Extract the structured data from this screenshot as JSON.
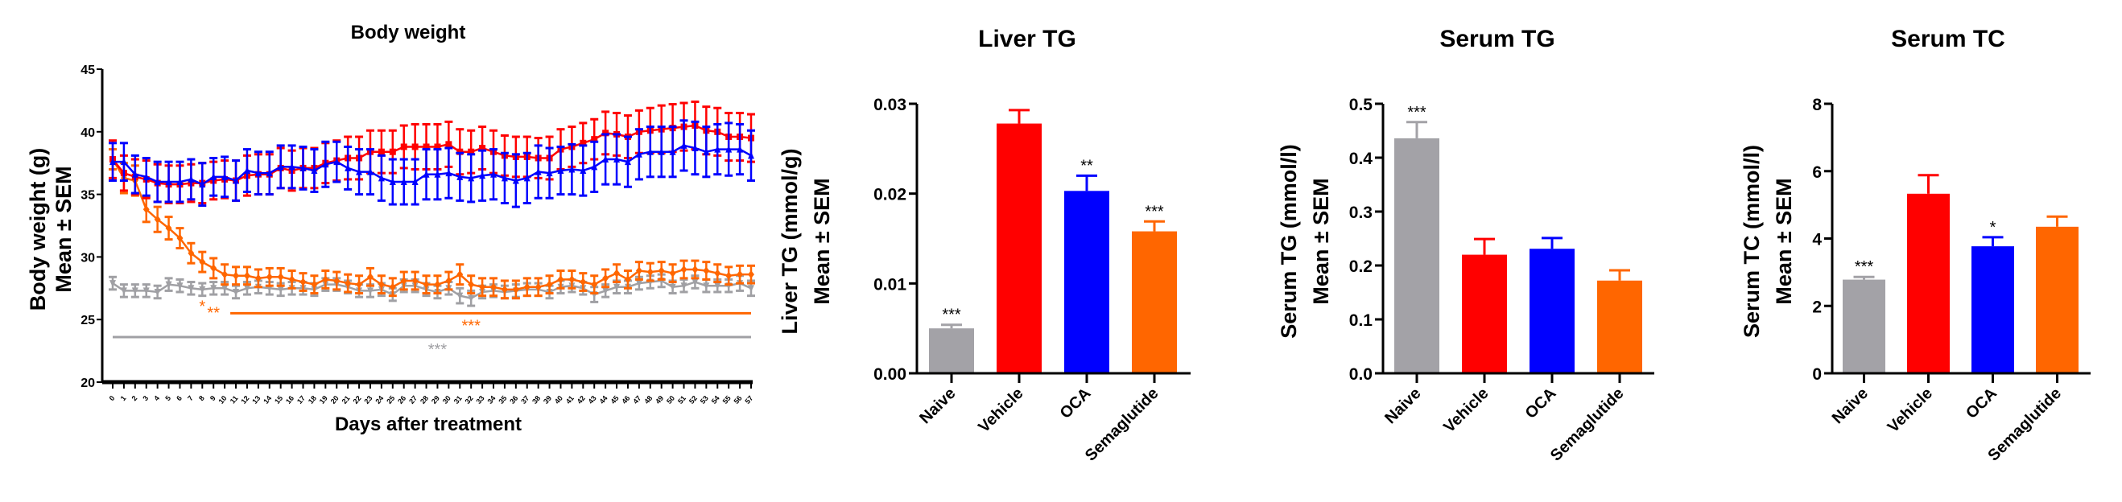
{
  "chart_data": [
    {
      "type": "line",
      "title": "Body weight",
      "xlabel": "Days after treatment",
      "ylabel": [
        "Body weight (g)",
        "Mean ± SEM"
      ],
      "ylim": [
        20,
        45
      ],
      "yticks": [
        20,
        25,
        30,
        35,
        40,
        45
      ],
      "x": [
        0,
        1,
        2,
        3,
        4,
        5,
        6,
        7,
        8,
        9,
        10,
        11,
        12,
        13,
        14,
        15,
        16,
        17,
        18,
        19,
        20,
        21,
        22,
        23,
        24,
        25,
        26,
        27,
        28,
        29,
        30,
        31,
        32,
        33,
        34,
        35,
        36,
        37,
        38,
        39,
        40,
        41,
        42,
        43,
        44,
        45,
        46,
        47,
        48,
        49,
        50,
        51,
        52,
        53,
        54,
        55,
        56,
        57
      ],
      "series": [
        {
          "name": "Naive",
          "color": "#a0a0a4",
          "marker": "triangle-down",
          "values": [
            27.9,
            27.3,
            27.3,
            27.3,
            27.2,
            27.8,
            27.7,
            27.5,
            27.4,
            27.5,
            27.5,
            27.2,
            27.5,
            27.6,
            27.5,
            27.4,
            27.5,
            27.5,
            27.4,
            27.8,
            27.8,
            27.6,
            27.3,
            27.3,
            27.4,
            27.0,
            27.7,
            27.7,
            27.4,
            27.2,
            27.5,
            26.9,
            26.7,
            27.2,
            27.3,
            27.2,
            27.3,
            27.4,
            27.4,
            27.2,
            27.6,
            27.7,
            27.5,
            27.0,
            27.3,
            27.6,
            27.6,
            27.9,
            28.0,
            28.1,
            27.6,
            27.7,
            28.0,
            27.7,
            27.7,
            27.7,
            27.9,
            27.5
          ],
          "sem": [
            0.5,
            0.5,
            0.5,
            0.5,
            0.5,
            0.5,
            0.5,
            0.5,
            0.5,
            0.5,
            0.5,
            0.5,
            0.5,
            0.5,
            0.5,
            0.5,
            0.5,
            0.5,
            0.5,
            0.5,
            0.5,
            0.5,
            0.5,
            0.5,
            0.5,
            0.5,
            0.5,
            0.5,
            0.5,
            0.5,
            0.5,
            0.6,
            0.6,
            0.5,
            0.5,
            0.5,
            0.5,
            0.5,
            0.5,
            0.5,
            0.5,
            0.5,
            0.5,
            0.6,
            0.5,
            0.5,
            0.5,
            0.5,
            0.5,
            0.5,
            0.5,
            0.5,
            0.5,
            0.5,
            0.5,
            0.5,
            0.6,
            0.6
          ]
        },
        {
          "name": "Vehicle",
          "color": "#ff0000",
          "marker": "square",
          "values": [
            37.8,
            36.7,
            36.4,
            36.2,
            35.9,
            35.8,
            35.8,
            35.9,
            35.9,
            36.1,
            36.2,
            36.1,
            36.5,
            36.6,
            36.6,
            37.1,
            36.9,
            37.1,
            37.1,
            37.5,
            37.7,
            37.9,
            37.9,
            38.4,
            38.4,
            38.4,
            38.8,
            38.8,
            38.8,
            38.8,
            39.0,
            38.4,
            38.4,
            38.7,
            38.4,
            38.1,
            38.0,
            38.0,
            37.9,
            37.9,
            38.6,
            38.8,
            39.1,
            39.4,
            39.9,
            39.8,
            39.6,
            40.0,
            40.1,
            40.2,
            40.3,
            40.4,
            40.5,
            40.1,
            40.0,
            39.6,
            39.6,
            39.5
          ],
          "sem": [
            1.5,
            1.4,
            1.4,
            1.5,
            1.5,
            1.5,
            1.5,
            1.5,
            1.6,
            1.5,
            1.5,
            1.6,
            1.6,
            1.6,
            1.6,
            1.6,
            1.6,
            1.6,
            1.6,
            1.6,
            1.6,
            1.7,
            1.7,
            1.7,
            1.7,
            1.7,
            1.7,
            1.8,
            1.8,
            1.8,
            1.8,
            1.8,
            1.7,
            1.7,
            1.7,
            1.6,
            1.6,
            1.6,
            1.6,
            1.7,
            1.6,
            1.6,
            1.6,
            1.6,
            1.7,
            1.7,
            1.7,
            1.7,
            1.8,
            1.9,
            1.9,
            1.9,
            1.9,
            1.9,
            1.9,
            1.9,
            1.9,
            1.9
          ]
        },
        {
          "name": "OCA",
          "color": "#0000ff",
          "marker": "triangle-up",
          "values": [
            37.6,
            37.6,
            36.6,
            36.4,
            36.0,
            36.0,
            36.0,
            36.2,
            35.8,
            36.4,
            36.4,
            36.1,
            36.9,
            36.7,
            36.7,
            37.2,
            37.2,
            37.1,
            36.9,
            37.4,
            37.6,
            37.1,
            36.8,
            36.8,
            36.3,
            36.0,
            36.0,
            36.0,
            36.6,
            36.6,
            36.7,
            36.4,
            36.3,
            36.5,
            36.6,
            36.3,
            36.1,
            36.3,
            36.8,
            36.7,
            36.9,
            37.0,
            36.9,
            37.2,
            37.8,
            37.8,
            37.6,
            38.2,
            38.4,
            38.4,
            38.4,
            38.9,
            38.7,
            38.4,
            38.6,
            38.6,
            38.6,
            38.1
          ],
          "sem": [
            1.5,
            1.5,
            1.5,
            1.5,
            1.6,
            1.6,
            1.6,
            1.6,
            1.7,
            1.5,
            1.6,
            1.6,
            1.7,
            1.7,
            1.7,
            1.7,
            1.7,
            1.7,
            1.7,
            1.8,
            1.6,
            1.7,
            1.8,
            1.8,
            1.8,
            1.8,
            1.8,
            1.8,
            2.0,
            2.0,
            2.0,
            1.9,
            1.9,
            2.0,
            2.0,
            2.0,
            2.1,
            2.0,
            2.1,
            2.0,
            1.9,
            2.0,
            2.0,
            2.0,
            2.0,
            2.0,
            2.0,
            2.0,
            2.0,
            2.0,
            2.0,
            2.0,
            2.1,
            2.0,
            2.0,
            2.1,
            2.0,
            2.0
          ]
        },
        {
          "name": "Semaglutide",
          "color": "#ff6600",
          "marker": "diamond",
          "values": [
            37.8,
            36.3,
            36.1,
            33.8,
            33.0,
            32.3,
            31.5,
            30.3,
            29.6,
            29.1,
            28.6,
            28.5,
            28.5,
            28.3,
            28.4,
            28.4,
            28.2,
            28.0,
            27.8,
            28.2,
            28.1,
            27.9,
            27.8,
            28.4,
            27.8,
            27.6,
            28.1,
            28.1,
            27.8,
            27.8,
            28.1,
            28.6,
            27.8,
            27.6,
            27.6,
            27.4,
            27.4,
            27.6,
            27.6,
            27.8,
            28.2,
            28.2,
            28.0,
            27.8,
            28.3,
            28.7,
            28.2,
            28.9,
            28.8,
            28.9,
            28.7,
            29.0,
            29.0,
            28.9,
            28.7,
            28.5,
            28.6,
            28.6
          ],
          "sem": [
            0.8,
            1.2,
            1.2,
            1.0,
            1.0,
            0.9,
            0.8,
            0.8,
            0.8,
            0.8,
            0.8,
            0.7,
            0.7,
            0.7,
            0.7,
            0.7,
            0.7,
            0.7,
            0.7,
            0.7,
            0.7,
            0.7,
            0.7,
            0.7,
            0.7,
            0.7,
            0.7,
            0.7,
            0.7,
            0.7,
            0.7,
            0.8,
            0.7,
            0.7,
            0.7,
            0.7,
            0.7,
            0.7,
            0.7,
            0.7,
            0.7,
            0.7,
            0.7,
            0.7,
            0.7,
            0.7,
            0.7,
            0.7,
            0.7,
            0.7,
            0.7,
            0.7,
            0.7,
            0.7,
            0.7,
            0.7,
            0.7,
            0.7
          ]
        }
      ],
      "annotations": [
        {
          "text": "*",
          "color": "#ff6600",
          "x": 8
        },
        {
          "text": "**",
          "color": "#ff6600",
          "x": 9
        },
        {
          "text": "***",
          "color": "#ff6600",
          "line_from": 10.5,
          "line_to": 57,
          "line_y": 25.5,
          "label_x": 32
        },
        {
          "text": "***",
          "color": "#a0a0a4",
          "line_from": 0,
          "line_to": 57,
          "line_y": 23.6,
          "label_x": 29
        }
      ]
    },
    {
      "type": "bar",
      "title": "Liver TG",
      "ylabel": [
        "Liver TG (mmol/g)",
        "Mean ± SEM"
      ],
      "categories": [
        "Naive",
        "Vehicle",
        "OCA",
        "Semaglutide"
      ],
      "colors": [
        "#a3a2a7",
        "#ff0000",
        "#0000ff",
        "#ff6600"
      ],
      "values": [
        0.005,
        0.0278,
        0.0203,
        0.0158
      ],
      "sem": [
        0.0004,
        0.0015,
        0.0017,
        0.0011
      ],
      "significance": [
        "***",
        "",
        "**",
        "***"
      ],
      "ylim": [
        0,
        0.03
      ],
      "yticks": [
        "0.00",
        "0.01",
        "0.02",
        "0.03"
      ]
    },
    {
      "type": "bar",
      "title": "Serum TG",
      "ylabel": [
        "Serum TG (mmol/l)",
        "Mean ± SEM"
      ],
      "categories": [
        "Naive",
        "Vehicle",
        "OCA",
        "Semaglutide"
      ],
      "colors": [
        "#a3a2a7",
        "#ff0000",
        "#0000ff",
        "#ff6600"
      ],
      "values": [
        0.436,
        0.22,
        0.231,
        0.172
      ],
      "sem": [
        0.03,
        0.029,
        0.02,
        0.019
      ],
      "significance": [
        "***",
        "",
        "",
        ""
      ],
      "ylim": [
        0,
        0.5
      ],
      "yticks": [
        "0.0",
        "0.1",
        "0.2",
        "0.3",
        "0.4",
        "0.5"
      ]
    },
    {
      "type": "bar",
      "title": "Serum TC",
      "ylabel": [
        "Serum TC (mmol/l)",
        "Mean ± SEM"
      ],
      "categories": [
        "Naive",
        "Vehicle",
        "OCA",
        "Semaglutide"
      ],
      "colors": [
        "#a3a2a7",
        "#ff0000",
        "#0000ff",
        "#ff6600"
      ],
      "values": [
        2.78,
        5.33,
        3.77,
        4.35
      ],
      "sem": [
        0.08,
        0.55,
        0.27,
        0.3
      ],
      "significance": [
        "***",
        "",
        "*",
        ""
      ],
      "ylim": [
        0,
        8
      ],
      "yticks": [
        "0",
        "2",
        "4",
        "6",
        "8"
      ]
    }
  ]
}
